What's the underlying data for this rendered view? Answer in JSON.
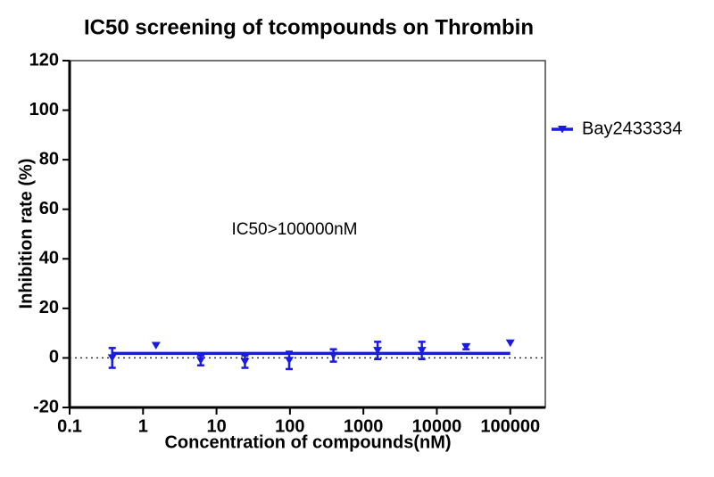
{
  "chart_data": {
    "type": "scatter",
    "title": "IC50 screening of tcompounds on Thrombin",
    "x_label": "Concentration of compounds(nM)",
    "y_label": "Inhibition rate (%)",
    "annotation": "IC50>100000nM",
    "x_log": true,
    "xlim": [
      0.1,
      300000
    ],
    "xticks": [
      0.1,
      1,
      10,
      100,
      1000,
      10000,
      100000
    ],
    "ylim": [
      -20,
      120
    ],
    "yticks": [
      -20,
      0,
      20,
      40,
      60,
      80,
      100,
      120
    ],
    "reference_line": 0,
    "legend": "right",
    "series": [
      {
        "name": "Bay2433334",
        "color": "#1a1ae6",
        "x": [
          0.38,
          1.5,
          6.1,
          24.4,
          97.7,
          390.6,
          1562.5,
          6250,
          25000,
          100000
        ],
        "values": [
          0,
          5,
          -1,
          -1.5,
          -1,
          1,
          3,
          3,
          4.5,
          6
        ],
        "errors": [
          4,
          null,
          2,
          2.5,
          3.5,
          2.5,
          3.5,
          3.5,
          1,
          null
        ],
        "fit": {
          "x": [
            0.38,
            100000
          ],
          "values": [
            1.8,
            1.8
          ]
        }
      }
    ]
  }
}
